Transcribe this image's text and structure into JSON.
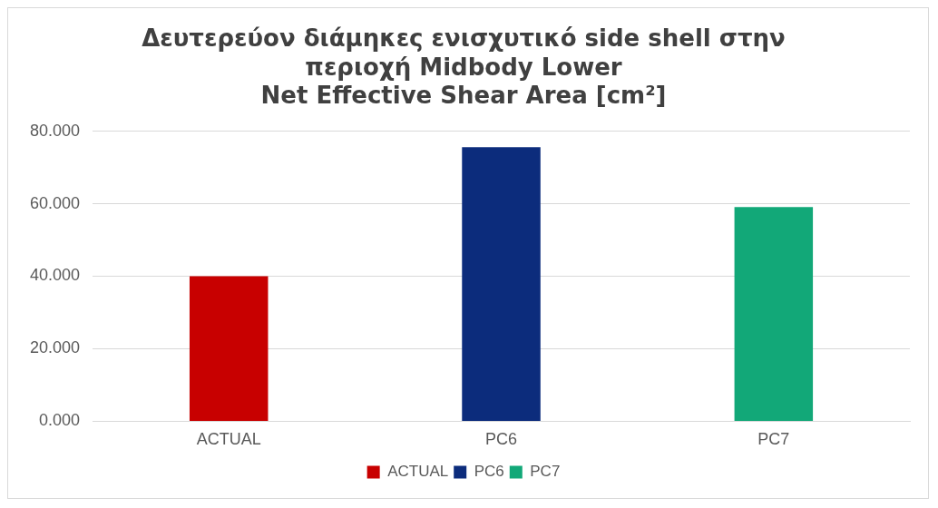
{
  "chart_data": {
    "type": "bar",
    "title": "Δευτερεύον διάμηκες ενισχυτικό side shell στην\nπεριοχή Midbody Lower\nNet Effective Shear Area [cm²]",
    "categories": [
      "ACTUAL",
      "PC6",
      "PC7"
    ],
    "series": [
      {
        "name": "ACTUAL",
        "color": "#c80000",
        "values": [
          40,
          null,
          null
        ]
      },
      {
        "name": "PC6",
        "color": "#0c2c7c",
        "values": [
          null,
          75.6,
          null
        ]
      },
      {
        "name": "PC7",
        "color": "#12a878",
        "values": [
          null,
          null,
          59.1
        ]
      }
    ],
    "ylim": [
      0,
      80
    ],
    "yticks": [
      {
        "value": 0,
        "label": "0.000"
      },
      {
        "value": 20,
        "label": "20.000"
      },
      {
        "value": 40,
        "label": "40.000"
      },
      {
        "value": 60,
        "label": "60.000"
      },
      {
        "value": 80,
        "label": "80.000"
      }
    ],
    "grid": "y",
    "legend": "bottom"
  }
}
